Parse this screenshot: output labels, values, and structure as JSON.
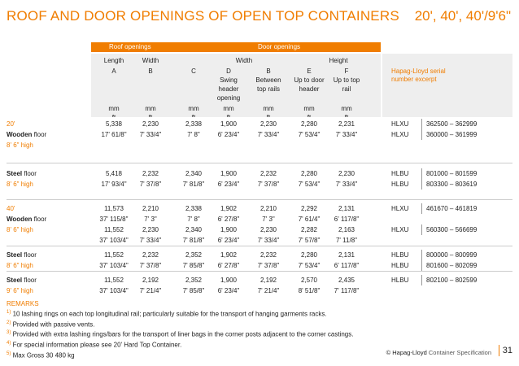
{
  "title": "ROOF AND DOOR OPENINGS OF OPEN TOP CONTAINERS",
  "title_right": "20', 40', 40'/9'6\"",
  "header": {
    "roof_openings": "Roof openings",
    "door_openings": "Door openings",
    "length": "Length",
    "width": "Width",
    "width2": "Width",
    "height": "Height",
    "A": "A",
    "B": "B",
    "C": "C",
    "D": "D",
    "B2": "B",
    "E": "E",
    "F": "F",
    "D_sub": "Swing header opening",
    "B_sub": "Between top rails",
    "E_sub": "Up to door header",
    "F_sub": "Up to top rail",
    "mm": "mm",
    "ft": "ft",
    "hapag": "Hapag-Lloyd serial number excerpt"
  },
  "rows": [
    {
      "label": "20'",
      "label_orange": true,
      "mm": [
        "5,338",
        "2,230",
        "2,338",
        "1,900",
        "2,230",
        "2,280",
        "2,231"
      ],
      "prefix": "HLXU",
      "serial": "362500 – 362999"
    },
    {
      "label": "Wooden floor",
      "bold": true,
      "mm": [
        "17' 61/8\"",
        "7' 33/4\"",
        "7' 8\"",
        "6' 23/4\"",
        "7' 33/4\"",
        "7' 53/4\"",
        "7' 33/4\""
      ],
      "prefix": "HLXU",
      "serial": "360000 – 361999"
    },
    {
      "label": "8' 6\" high",
      "label_orange": true,
      "mm": [
        "",
        "",
        "",
        "",
        "",
        "",
        ""
      ],
      "prefix": "",
      "serial": ""
    },
    {
      "label": "Steel floor",
      "bold": true,
      "mm": [
        "5,418",
        "2,232",
        "2,340",
        "1,900",
        "2,232",
        "2,280",
        "2,230"
      ],
      "prefix": "HLBU",
      "serial": "801000 – 801599"
    },
    {
      "label": "8' 6\" high",
      "label_orange": true,
      "mm": [
        "17' 93/4\"",
        "7' 37/8\"",
        "7' 81/8\"",
        "6' 23/4\"",
        "7' 37/8\"",
        "7' 53/4\"",
        "7' 33/4\""
      ],
      "prefix": "HLBU",
      "serial": "803300 – 803619"
    },
    {
      "label": "40'",
      "label_orange": true,
      "mm": [
        "11,573",
        "2,210",
        "2,338",
        "1,902",
        "2,210",
        "2,292",
        "2,131"
      ],
      "prefix": "HLXU",
      "serial": "461670 – 461819"
    },
    {
      "label": "Wooden floor",
      "bold": true,
      "mm": [
        "37' 115/8\"",
        "7' 3\"",
        "7' 8\"",
        "6' 27/8\"",
        "7' 3\"",
        "7' 61/4\"",
        "6' 117/8\""
      ],
      "prefix": "",
      "serial": ""
    },
    {
      "label": "8' 6\" high",
      "label_orange": true,
      "mm": [
        "11,552",
        "2,230",
        "2,340",
        "1,900",
        "2,230",
        "2,282",
        "2,163"
      ],
      "prefix": "HLXU",
      "serial": "560300 – 566699"
    },
    {
      "label": "",
      "mm": [
        "37' 103/4\"",
        "7' 33/4\"",
        "7' 81/8\"",
        "6' 23/4\"",
        "7' 33/4\"",
        "7' 57/8\"",
        "7' 11/8\""
      ],
      "prefix": "",
      "serial": ""
    },
    {
      "label": "Steel floor",
      "bold": true,
      "mm": [
        "11,552",
        "2,232",
        "2,352",
        "1,902",
        "2,232",
        "2,280",
        "2,131"
      ],
      "prefix": "HLBU",
      "serial": "800000 – 800999"
    },
    {
      "label": "8' 6\" high",
      "label_orange": true,
      "mm": [
        "37' 103/4\"",
        "7' 37/8\"",
        "7' 85/8\"",
        "6' 27/8\"",
        "7' 37/8\"",
        "7' 53/4\"",
        "6' 117/8\""
      ],
      "prefix": "HLBU",
      "serial": "801600 – 802099"
    },
    {
      "label": "Steel floor",
      "bold": true,
      "mm": [
        "11,552",
        "2,192",
        "2,352",
        "1,900",
        "2,192",
        "2,570",
        "2,435"
      ],
      "prefix": "HLBU",
      "serial": "802100 – 802599"
    },
    {
      "label": "9' 6\" high",
      "label_orange": true,
      "mm": [
        "37' 103/4\"",
        "7' 21/4\"",
        "7' 85/8\"",
        "6' 23/4\"",
        "7' 21/4\"",
        "8' 51/8\"",
        "7' 117/8\""
      ],
      "prefix": "",
      "serial": ""
    }
  ],
  "remarks": {
    "title": "REMARKS",
    "items": [
      {
        "n": "1)",
        "text": "10 lashing rings on each top longitudinal rail; particularly suitable for the transport of hanging garments racks."
      },
      {
        "n": "2)",
        "text": "Provided with passive vents."
      },
      {
        "n": "3)",
        "text": "Provided with extra lashing rings/bars for the transport of liner bags in the corner posts adjacent to the corner castings."
      },
      {
        "n": "4)",
        "text": "For special information please see 20' Hard Top Container."
      },
      {
        "n": "5)",
        "text": "Max Gross 30 480 kg"
      }
    ]
  },
  "footer": {
    "brand": "© Hapag-Lloyd",
    "spec": "Container Specification",
    "page": "31"
  },
  "colors": {
    "accent": "#f07d00",
    "band": "#eeeeee"
  }
}
